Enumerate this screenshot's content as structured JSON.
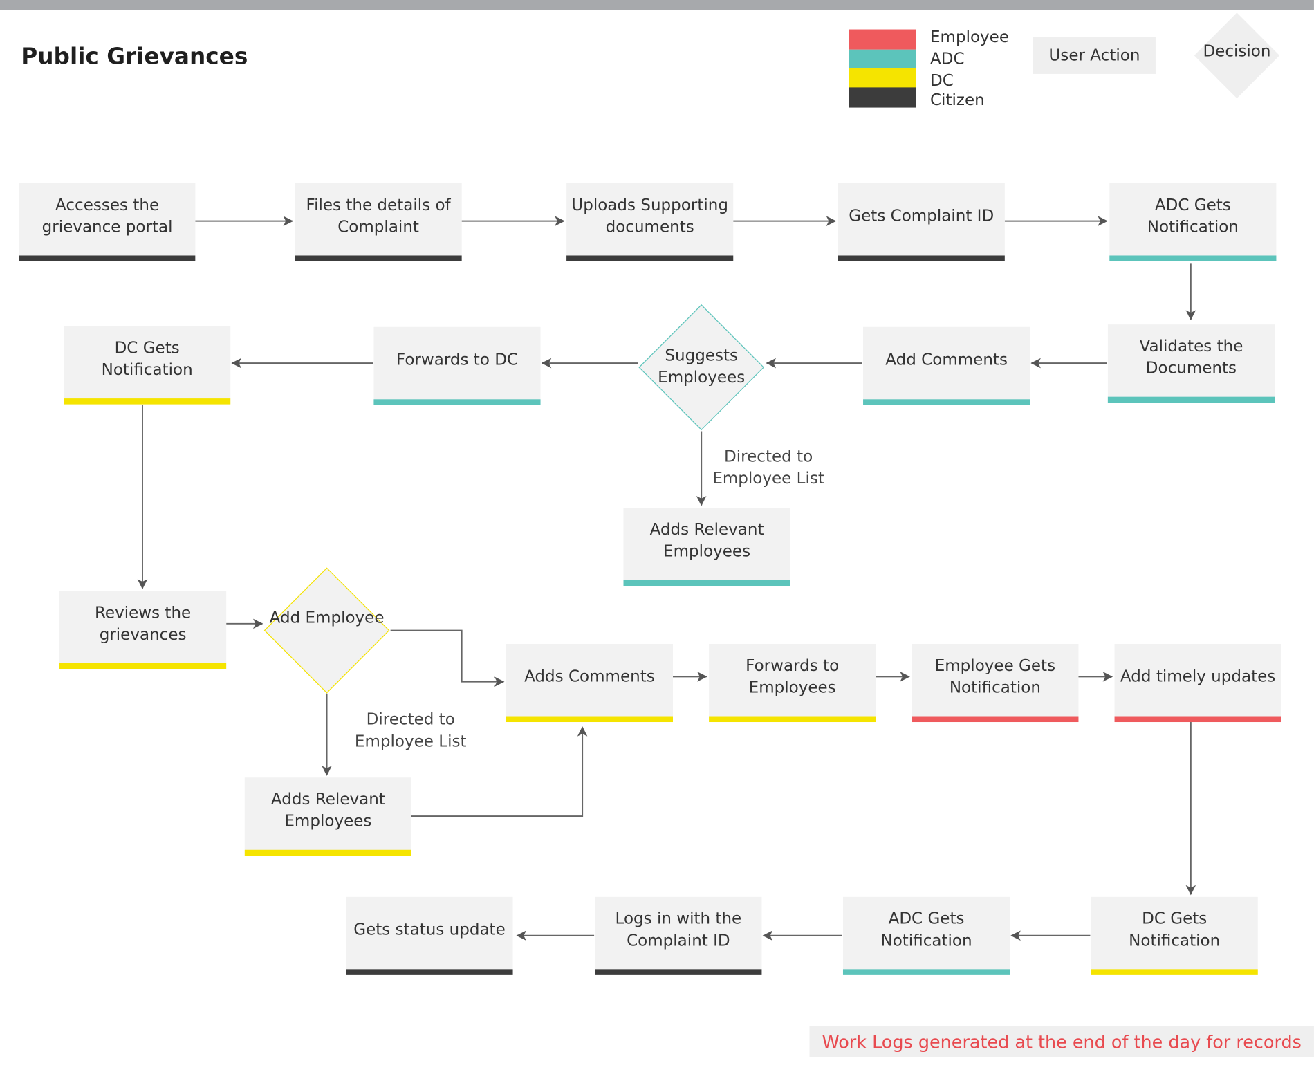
{
  "title": "Public Grievances",
  "legend": {
    "roles": [
      {
        "label": "Employee",
        "color": "#ef5a5d"
      },
      {
        "label": "ADC",
        "color": "#5cc4bb"
      },
      {
        "label": "DC",
        "color": "#f5e400"
      },
      {
        "label": "Citizen",
        "color": "#3c3c3c"
      }
    ],
    "user_action": "User Action",
    "decision": "Decision"
  },
  "nodes": {
    "accesses_portal": "Accesses the grievance portal",
    "files_details": "Files the details of Complaint",
    "uploads_documents": "Uploads Supporting documents",
    "gets_complaint_id": "Gets Complaint ID",
    "adc_notification_1": "ADC Gets Notification",
    "validates_documents": "Validates the Documents",
    "add_comments_adc": "Add Comments",
    "suggests_employees": "Suggests Employees",
    "forwards_to_dc": "Forwards to DC",
    "dc_notification_1": "DC Gets Notification",
    "adds_relevant_employees_adc": "Adds Relevant Employees",
    "reviews_grievances": "Reviews the grievances",
    "add_employee": "Add Employee",
    "adds_relevant_employees_dc": "Adds Relevant Employees",
    "adds_comments_dc": "Adds Comments",
    "forwards_to_employees": "Forwards to Employees",
    "employee_notification": "Employee Gets Notification",
    "add_timely_updates": "Add timely updates",
    "dc_notification_2": "DC Gets Notification",
    "adc_notification_2": "ADC Gets Notification",
    "logs_in": "Logs in with the Complaint ID",
    "gets_status_update": "Gets status update"
  },
  "edge_labels": {
    "directed_adc": "Directed to Employee List",
    "directed_dc": "Directed to Employee List"
  },
  "footnote": "Work Logs generated at the end of the day for records"
}
